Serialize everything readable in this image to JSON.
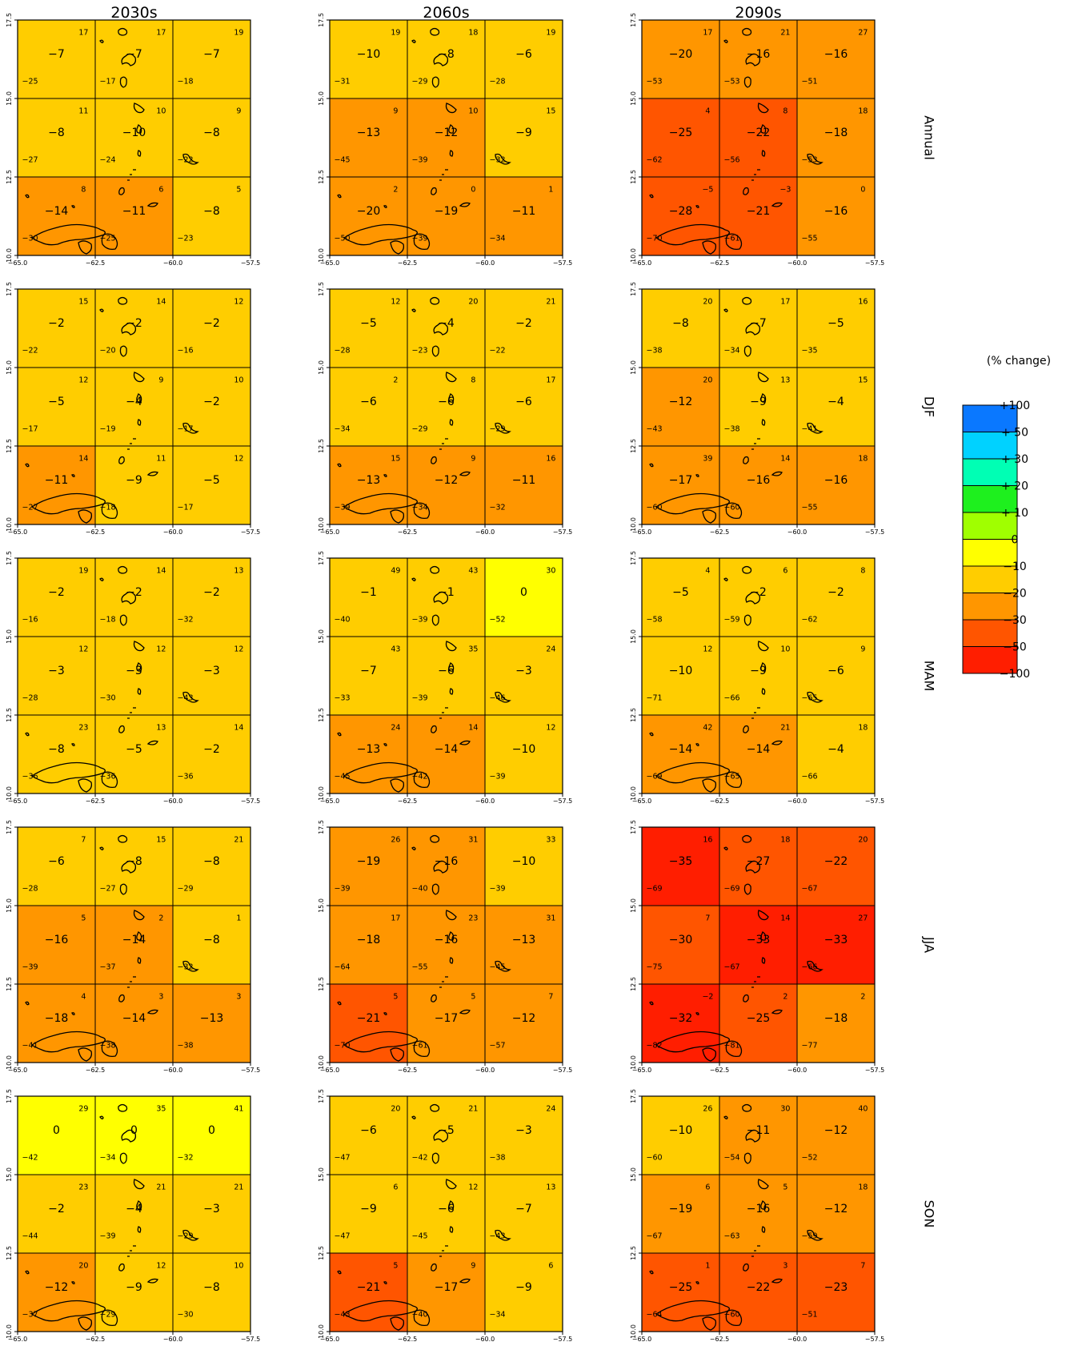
{
  "columns": [
    "2030s",
    "2060s",
    "2090s"
  ],
  "rows": [
    "Annual",
    "DJF",
    "MAM",
    "JJA",
    "SON"
  ],
  "x_ticks": [
    "-65.0",
    "-62.5",
    "-60.0",
    "-57.5"
  ],
  "y_ticks": [
    "10.0",
    "12.5",
    "15.0",
    "17.5"
  ],
  "legend": {
    "title": "(% change)",
    "items": [
      {
        "label": "+100",
        "color": "#0a78ff"
      },
      {
        "label": "+ 50",
        "color": "#00d2ff"
      },
      {
        "label": "+ 30",
        "color": "#00ffb4"
      },
      {
        "label": "+ 20",
        "color": "#1ef01e"
      },
      {
        "label": "+ 10",
        "color": "#a0ff00"
      },
      {
        "label": "0",
        "color": "#ffff00"
      },
      {
        "label": "−10",
        "color": "#ffcd00"
      },
      {
        "label": "−20",
        "color": "#ff9600"
      },
      {
        "label": "−30",
        "color": "#ff5500"
      },
      {
        "label": "−50",
        "color": "#ff1e00"
      },
      {
        "label": "−100",
        "color": null
      }
    ]
  },
  "chart_data": {
    "type": "heatmap",
    "description": "Grid-box projected precipitation change (%): central value with max (top-right) and min (bottom-left) per box",
    "panels": [
      {
        "row": "Annual",
        "col": "2030s",
        "cells": [
          {
            "v": -7,
            "max": 17,
            "min": -25
          },
          {
            "v": -7,
            "max": 17,
            "min": -17
          },
          {
            "v": -7,
            "max": 19,
            "min": -18
          },
          {
            "v": -8,
            "max": 11,
            "min": -27
          },
          {
            "v": -10,
            "max": 10,
            "min": -24
          },
          {
            "v": -8,
            "max": 9,
            "min": -22
          },
          {
            "v": -14,
            "max": 8,
            "min": -30
          },
          {
            "v": -11,
            "max": 6,
            "min": -25
          },
          {
            "v": -8,
            "max": 5,
            "min": -23
          }
        ]
      },
      {
        "row": "Annual",
        "col": "2060s",
        "cells": [
          {
            "v": -10,
            "max": 19,
            "min": -31
          },
          {
            "v": -8,
            "max": 18,
            "min": -29
          },
          {
            "v": -6,
            "max": 19,
            "min": -28
          },
          {
            "v": -13,
            "max": 9,
            "min": -45
          },
          {
            "v": -12,
            "max": 10,
            "min": -39
          },
          {
            "v": -9,
            "max": 15,
            "min": -32
          },
          {
            "v": -20,
            "max": 2,
            "min": -50
          },
          {
            "v": -19,
            "max": 0,
            "min": -39
          },
          {
            "v": -11,
            "max": 1,
            "min": -34
          }
        ]
      },
      {
        "row": "Annual",
        "col": "2090s",
        "cells": [
          {
            "v": -20,
            "max": 17,
            "min": -53
          },
          {
            "v": -16,
            "max": 21,
            "min": -53
          },
          {
            "v": -16,
            "max": 27,
            "min": -51
          },
          {
            "v": -25,
            "max": 4,
            "min": -62
          },
          {
            "v": -22,
            "max": 8,
            "min": -56
          },
          {
            "v": -18,
            "max": 18,
            "min": -53
          },
          {
            "v": -28,
            "max": -5,
            "min": -70
          },
          {
            "v": -21,
            "max": -3,
            "min": -61
          },
          {
            "v": -16,
            "max": 0,
            "min": -55
          }
        ]
      },
      {
        "row": "DJF",
        "col": "2030s",
        "cells": [
          {
            "v": -2,
            "max": 15,
            "min": -22
          },
          {
            "v": -2,
            "max": 14,
            "min": -20
          },
          {
            "v": -2,
            "max": 12,
            "min": -16
          },
          {
            "v": -5,
            "max": 12,
            "min": -17
          },
          {
            "v": -4,
            "max": 9,
            "min": -19
          },
          {
            "v": -2,
            "max": 10,
            "min": -17
          },
          {
            "v": -11,
            "max": 14,
            "min": -27
          },
          {
            "v": -9,
            "max": 11,
            "min": -18
          },
          {
            "v": -5,
            "max": 12,
            "min": -17
          }
        ]
      },
      {
        "row": "DJF",
        "col": "2060s",
        "cells": [
          {
            "v": -5,
            "max": 12,
            "min": -28
          },
          {
            "v": -4,
            "max": 20,
            "min": -23
          },
          {
            "v": -2,
            "max": 21,
            "min": -22
          },
          {
            "v": -6,
            "max": 2,
            "min": -34
          },
          {
            "v": -6,
            "max": 8,
            "min": -29
          },
          {
            "v": -6,
            "max": 17,
            "min": -29
          },
          {
            "v": -13,
            "max": 15,
            "min": -39
          },
          {
            "v": -12,
            "max": 9,
            "min": -34
          },
          {
            "v": -11,
            "max": 16,
            "min": -32
          }
        ]
      },
      {
        "row": "DJF",
        "col": "2090s",
        "cells": [
          {
            "v": -8,
            "max": 20,
            "min": -38
          },
          {
            "v": -7,
            "max": 17,
            "min": -34
          },
          {
            "v": -5,
            "max": 16,
            "min": -35
          },
          {
            "v": -12,
            "max": 20,
            "min": -43
          },
          {
            "v": -9,
            "max": 13,
            "min": -38
          },
          {
            "v": -4,
            "max": 15,
            "min": -41
          },
          {
            "v": -17,
            "max": 39,
            "min": -60
          },
          {
            "v": -16,
            "max": 14,
            "min": -60
          },
          {
            "v": -16,
            "max": 18,
            "min": -55
          }
        ]
      },
      {
        "row": "MAM",
        "col": "2030s",
        "cells": [
          {
            "v": -2,
            "max": 19,
            "min": -16
          },
          {
            "v": -2,
            "max": 14,
            "min": -18
          },
          {
            "v": -2,
            "max": 13,
            "min": -32
          },
          {
            "v": -3,
            "max": 12,
            "min": -28
          },
          {
            "v": -3,
            "max": 12,
            "min": -30
          },
          {
            "v": -3,
            "max": 12,
            "min": -43
          },
          {
            "v": -8,
            "max": 23,
            "min": -36
          },
          {
            "v": -5,
            "max": 13,
            "min": -36
          },
          {
            "v": -2,
            "max": 14,
            "min": -36
          }
        ]
      },
      {
        "row": "MAM",
        "col": "2060s",
        "cells": [
          {
            "v": -1,
            "max": 49,
            "min": -40
          },
          {
            "v": -1,
            "max": 43,
            "min": -39
          },
          {
            "v": 0,
            "max": 30,
            "min": -52
          },
          {
            "v": -7,
            "max": 43,
            "min": -33
          },
          {
            "v": -6,
            "max": 35,
            "min": -39
          },
          {
            "v": -3,
            "max": 24,
            "min": -46
          },
          {
            "v": -13,
            "max": 24,
            "min": -45
          },
          {
            "v": -14,
            "max": 14,
            "min": -42
          },
          {
            "v": -10,
            "max": 12,
            "min": -39
          }
        ]
      },
      {
        "row": "MAM",
        "col": "2090s",
        "cells": [
          {
            "v": -5,
            "max": 4,
            "min": -58
          },
          {
            "v": -2,
            "max": 6,
            "min": -59
          },
          {
            "v": -2,
            "max": 8,
            "min": -62
          },
          {
            "v": -10,
            "max": 12,
            "min": -71
          },
          {
            "v": -9,
            "max": 10,
            "min": -66
          },
          {
            "v": -6,
            "max": 9,
            "min": -65
          },
          {
            "v": -14,
            "max": 42,
            "min": -69
          },
          {
            "v": -14,
            "max": 21,
            "min": -65
          },
          {
            "v": -4,
            "max": 18,
            "min": -66
          }
        ]
      },
      {
        "row": "JJA",
        "col": "2030s",
        "cells": [
          {
            "v": -6,
            "max": 7,
            "min": -28
          },
          {
            "v": -8,
            "max": 15,
            "min": -27
          },
          {
            "v": -8,
            "max": 21,
            "min": -29
          },
          {
            "v": -16,
            "max": 5,
            "min": -39
          },
          {
            "v": -14,
            "max": 2,
            "min": -37
          },
          {
            "v": -8,
            "max": 1,
            "min": -32
          },
          {
            "v": -18,
            "max": 4,
            "min": -41
          },
          {
            "v": -14,
            "max": 3,
            "min": -38
          },
          {
            "v": -13,
            "max": 3,
            "min": -38
          }
        ]
      },
      {
        "row": "JJA",
        "col": "2060s",
        "cells": [
          {
            "v": -19,
            "max": 26,
            "min": -39
          },
          {
            "v": -16,
            "max": 31,
            "min": -40
          },
          {
            "v": -10,
            "max": 33,
            "min": -39
          },
          {
            "v": -18,
            "max": 17,
            "min": -64
          },
          {
            "v": -16,
            "max": 23,
            "min": -55
          },
          {
            "v": -13,
            "max": 31,
            "min": -45
          },
          {
            "v": -21,
            "max": 5,
            "min": -70
          },
          {
            "v": -17,
            "max": 5,
            "min": -61
          },
          {
            "v": -12,
            "max": 7,
            "min": -57
          }
        ]
      },
      {
        "row": "JJA",
        "col": "2090s",
        "cells": [
          {
            "v": -35,
            "max": 16,
            "min": -69
          },
          {
            "v": -27,
            "max": 18,
            "min": -69
          },
          {
            "v": -22,
            "max": 20,
            "min": -67
          },
          {
            "v": -30,
            "max": 7,
            "min": -75
          },
          {
            "v": -33,
            "max": 14,
            "min": -67
          },
          {
            "v": -33,
            "max": 27,
            "min": -66
          },
          {
            "v": -32,
            "max": -2,
            "min": -82
          },
          {
            "v": -25,
            "max": 2,
            "min": -81
          },
          {
            "v": -18,
            "max": 2,
            "min": -77
          }
        ]
      },
      {
        "row": "SON",
        "col": "2030s",
        "cells": [
          {
            "v": 0,
            "max": 29,
            "min": -42
          },
          {
            "v": 0,
            "max": 35,
            "min": -34
          },
          {
            "v": 0,
            "max": 41,
            "min": -32
          },
          {
            "v": -2,
            "max": 23,
            "min": -44
          },
          {
            "v": -4,
            "max": 21,
            "min": -39
          },
          {
            "v": -3,
            "max": 21,
            "min": -29
          },
          {
            "v": -12,
            "max": 20,
            "min": -37
          },
          {
            "v": -9,
            "max": 12,
            "min": -29
          },
          {
            "v": -8,
            "max": 10,
            "min": -30
          }
        ]
      },
      {
        "row": "SON",
        "col": "2060s",
        "cells": [
          {
            "v": -6,
            "max": 20,
            "min": -47
          },
          {
            "v": -5,
            "max": 21,
            "min": -42
          },
          {
            "v": -3,
            "max": 24,
            "min": -38
          },
          {
            "v": -9,
            "max": 6,
            "min": -47
          },
          {
            "v": -6,
            "max": 12,
            "min": -45
          },
          {
            "v": -7,
            "max": 13,
            "min": -43
          },
          {
            "v": -21,
            "max": 5,
            "min": -43
          },
          {
            "v": -17,
            "max": 9,
            "min": -40
          },
          {
            "v": -9,
            "max": 6,
            "min": -34
          }
        ]
      },
      {
        "row": "SON",
        "col": "2090s",
        "cells": [
          {
            "v": -10,
            "max": 26,
            "min": -60
          },
          {
            "v": -11,
            "max": 30,
            "min": -54
          },
          {
            "v": -12,
            "max": 40,
            "min": -52
          },
          {
            "v": -19,
            "max": 6,
            "min": -67
          },
          {
            "v": -16,
            "max": 5,
            "min": -63
          },
          {
            "v": -12,
            "max": 18,
            "min": -59
          },
          {
            "v": -25,
            "max": 1,
            "min": -64
          },
          {
            "v": -22,
            "max": 3,
            "min": -60
          },
          {
            "v": -23,
            "max": 7,
            "min": -51
          }
        ]
      }
    ]
  }
}
